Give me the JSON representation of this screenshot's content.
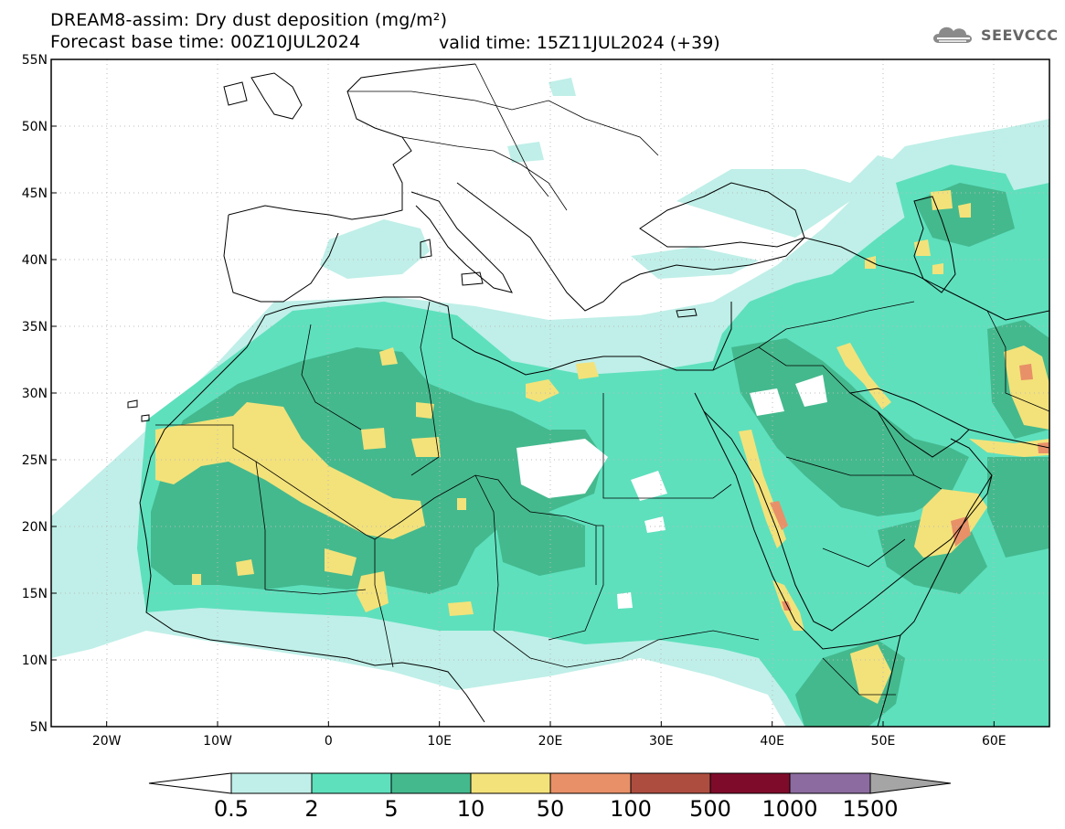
{
  "header": {
    "title": "DREAM8-assim: Dry dust deposition (mg/m²)",
    "base_time": "Forecast base time: 00Z10JUL2024",
    "valid_time": "valid time: 15Z11JUL2024 (+39)",
    "logo": "SEEVCCC"
  },
  "map": {
    "lat_labels": [
      "55N",
      "50N",
      "45N",
      "40N",
      "35N",
      "30N",
      "25N",
      "20N",
      "15N",
      "10N",
      "5N"
    ],
    "lon_labels": [
      "20W",
      "10W",
      "0",
      "10E",
      "20E",
      "30E",
      "40E",
      "50E",
      "60E"
    ],
    "lat_range": [
      5,
      55
    ],
    "lon_range": [
      -25,
      65
    ],
    "colors": {
      "c1": "#bfefe8",
      "c2": "#5ee0bd",
      "c3": "#44b98e",
      "c4": "#f3e27a",
      "c5": "#e89068",
      "c6": "#ad4d3f",
      "c7": "#7f0b2b",
      "c8": "#8c6ba0",
      "c9": "#a5a5a5"
    }
  },
  "legend": {
    "thresholds": [
      "0.5",
      "2",
      "5",
      "10",
      "50",
      "100",
      "500",
      "1000",
      "1500"
    ]
  }
}
